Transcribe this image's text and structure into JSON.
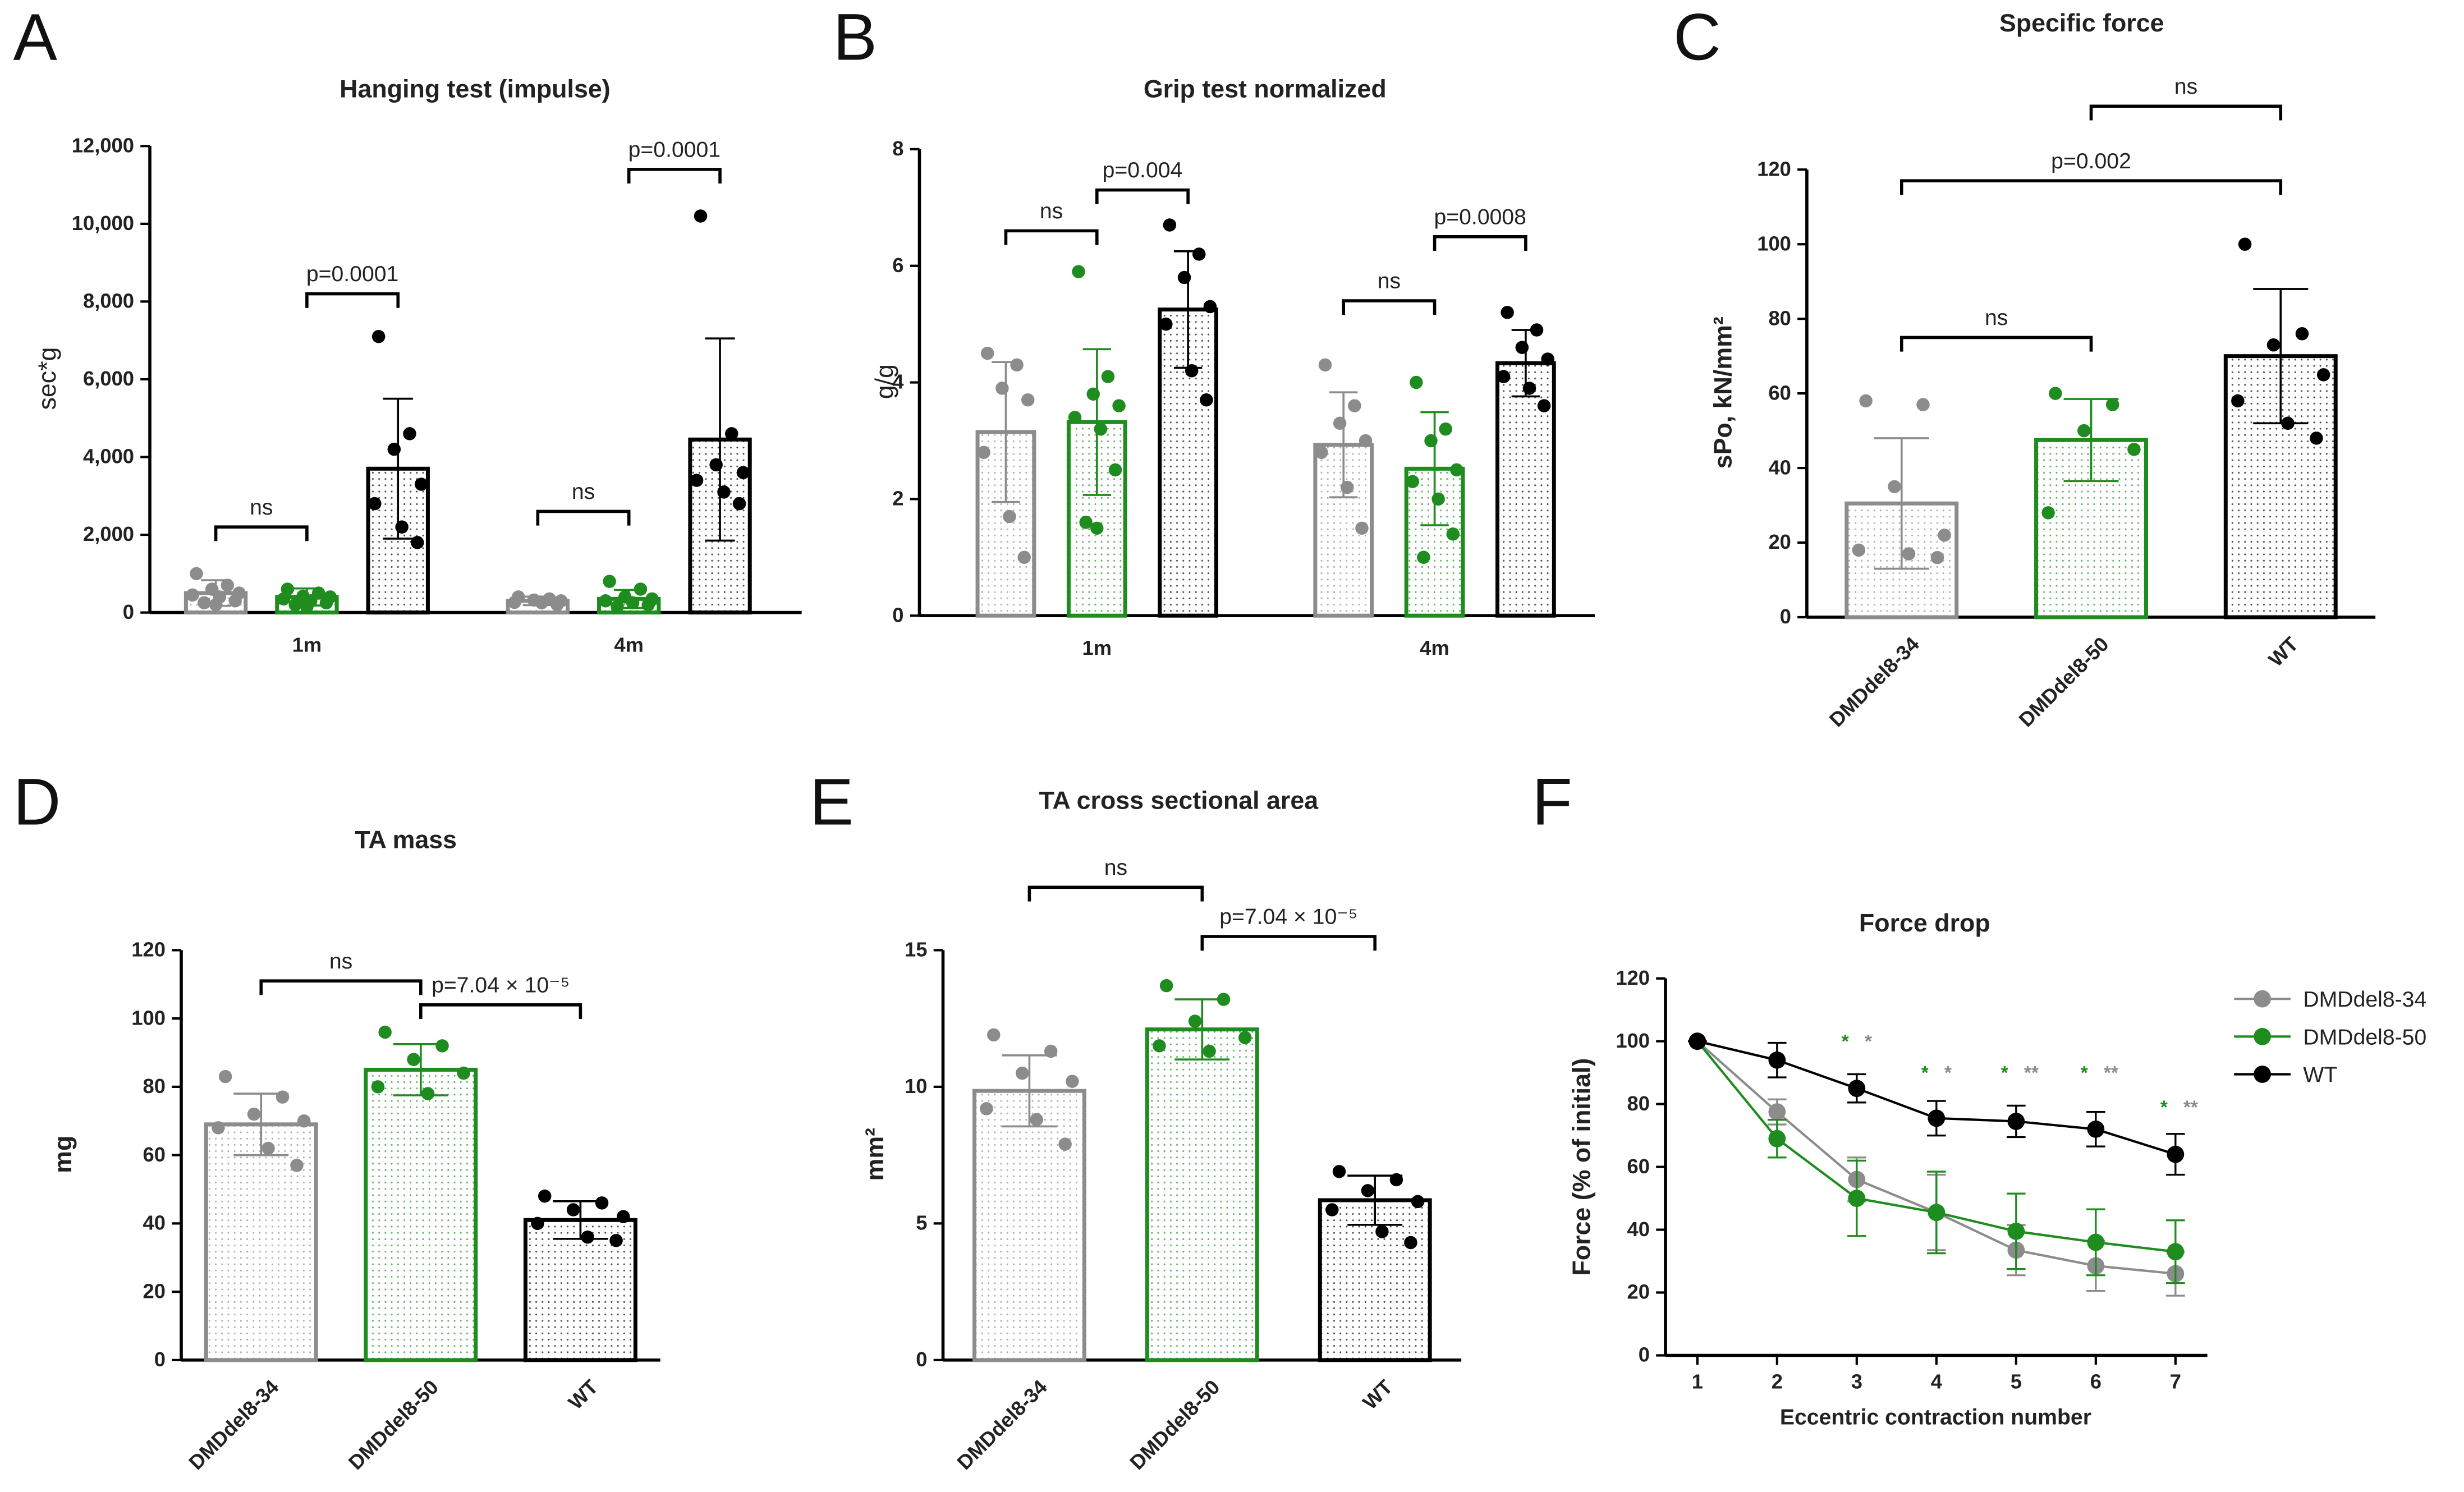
{
  "chart_data": [
    {
      "type": "bar",
      "panel": "A",
      "title": "Hanging test (impulse)",
      "ylabel": "sec*g",
      "categories": [
        "1m",
        "4m"
      ],
      "series": [
        {
          "color": "#8c8c8c",
          "values": [
            500,
            300
          ],
          "errors": [
            330,
            110
          ],
          "points": [
            [
              1000,
              700,
              600,
              500,
              450,
              400,
              300,
              250,
              200
            ],
            [
              400,
              350,
              320,
              300,
              260,
              250,
              200
            ]
          ]
        },
        {
          "color": "#1e8c1e",
          "values": [
            400,
            350
          ],
          "errors": [
            220,
            230
          ],
          "points": [
            [
              600,
              500,
              420,
              400,
              350,
              300,
              250,
              200,
              150
            ],
            [
              800,
              600,
              400,
              350,
              300,
              250,
              200,
              150
            ]
          ]
        },
        {
          "color": "#000000",
          "values": [
            3700,
            4450
          ],
          "errors": [
            1800,
            2600
          ],
          "points": [
            [
              7100,
              4600,
              4200,
              3300,
              2800,
              2200,
              1800
            ],
            [
              10200,
              4600,
              3800,
              3600,
              3400,
              3100,
              2800
            ]
          ]
        }
      ],
      "ylim": [
        0,
        12000
      ],
      "yticks": [
        0,
        {
          "value": 2000,
          "label": "2,000"
        },
        {
          "value": 4000,
          "label": "4,000"
        },
        {
          "value": 6000,
          "label": "6,000"
        },
        {
          "value": 8000,
          "label": "8,000"
        },
        {
          "value": 10000,
          "label": "10,000"
        },
        {
          "value": 12000,
          "label": "12,000"
        }
      ],
      "annotations": [
        {
          "category": 0,
          "from": 0,
          "to": 1,
          "y": 2200,
          "label": "ns"
        },
        {
          "category": 0,
          "from": 1,
          "to": 2,
          "y": 8200,
          "label": "p=0.0001"
        },
        {
          "category": 1,
          "from": 0,
          "to": 1,
          "y": 2600,
          "label": "ns"
        },
        {
          "category": 1,
          "from": 1,
          "to": 2,
          "y": 11400,
          "label": "p=0.0001"
        }
      ]
    },
    {
      "type": "bar",
      "panel": "B",
      "title": "Grip test normalized",
      "ylabel": "g/g",
      "categories": [
        "1m",
        "4m"
      ],
      "series": [
        {
          "color": "#8c8c8c",
          "values": [
            3.15,
            2.93
          ],
          "errors": [
            1.2,
            0.9
          ],
          "points": [
            [
              4.5,
              4.3,
              3.9,
              3.7,
              2.8,
              1.7,
              1.0
            ],
            [
              4.3,
              3.6,
              3.3,
              3.0,
              2.8,
              2.2,
              1.5
            ]
          ]
        },
        {
          "color": "#1e8c1e",
          "values": [
            3.32,
            2.52
          ],
          "errors": [
            1.25,
            0.97
          ],
          "points": [
            [
              5.9,
              4.1,
              3.8,
              3.6,
              3.4,
              3.2,
              2.5,
              1.6,
              1.5
            ],
            [
              4.0,
              3.2,
              3.0,
              2.5,
              2.3,
              2.0,
              1.4,
              1.0
            ]
          ]
        },
        {
          "color": "#000000",
          "values": [
            5.25,
            4.33
          ],
          "errors": [
            1.0,
            0.57
          ],
          "points": [
            [
              6.7,
              6.2,
              5.8,
              5.3,
              5.0,
              4.2,
              3.7
            ],
            [
              5.2,
              4.9,
              4.6,
              4.4,
              4.1,
              3.9,
              3.6
            ]
          ]
        }
      ],
      "ylim": [
        0,
        8
      ],
      "yticks": [
        0,
        2,
        4,
        6,
        8
      ],
      "annotations": [
        {
          "category": 0,
          "from": 0,
          "to": 1,
          "y": 6.6,
          "label": "ns"
        },
        {
          "category": 0,
          "from": 1,
          "to": 2,
          "y": 7.3,
          "label": "p=0.004"
        },
        {
          "category": 1,
          "from": 0,
          "to": 1,
          "y": 5.4,
          "label": "ns"
        },
        {
          "category": 1,
          "from": 1,
          "to": 2,
          "y": 6.5,
          "label": "p=0.0008"
        }
      ]
    },
    {
      "type": "bar",
      "panel": "C",
      "title": "Specific force",
      "ylabel": "sPo, kN/mm²",
      "categories": [
        "DMDdel8-34",
        "DMDdel8-50",
        "WT"
      ],
      "colors": [
        "#8c8c8c",
        "#1e8c1e",
        "#000000"
      ],
      "values": [
        30.5,
        47.5,
        70
      ],
      "errors": [
        17.5,
        11,
        18
      ],
      "points": [
        [
          58,
          57,
          35,
          22,
          18,
          17,
          16
        ],
        [
          60,
          57,
          50,
          45,
          28
        ],
        [
          100,
          76,
          73,
          65,
          58,
          52,
          48
        ]
      ],
      "ylim": [
        0,
        120
      ],
      "yticks": [
        0,
        20,
        40,
        60,
        80,
        100,
        120
      ],
      "annotations": [
        {
          "from": 0,
          "to": 1,
          "y": 75,
          "label": "ns"
        },
        {
          "from": 0,
          "to": 2,
          "y": 117,
          "label": "p=0.002"
        },
        {
          "from": 1,
          "to": 2,
          "y": 137,
          "label": "ns"
        }
      ]
    },
    {
      "type": "bar",
      "panel": "D",
      "title": "TA mass",
      "ylabel": "mg",
      "categories": [
        "DMDdel8-34",
        "DMDdel8-50",
        "WT"
      ],
      "colors": [
        "#8c8c8c",
        "#1e8c1e",
        "#000000"
      ],
      "values": [
        69,
        85,
        41
      ],
      "errors": [
        9,
        7.5,
        5.5
      ],
      "points": [
        [
          83,
          77,
          72,
          70,
          68,
          62,
          57
        ],
        [
          96,
          92,
          88,
          84,
          80,
          78
        ],
        [
          48,
          46,
          44,
          42,
          40,
          36,
          35
        ]
      ],
      "ylim": [
        0,
        120
      ],
      "yticks": [
        0,
        20,
        40,
        60,
        80,
        100,
        120
      ],
      "annotations": [
        {
          "from": 0,
          "to": 1,
          "y": 111,
          "label": "ns"
        },
        {
          "from": 1,
          "to": 2,
          "y": 104,
          "label": "p=7.04 × 10⁻⁵"
        }
      ]
    },
    {
      "type": "bar",
      "panel": "E",
      "title": "TA cross sectional area",
      "ylabel": "mm²",
      "categories": [
        "DMDdel8-34",
        "DMDdel8-50",
        "WT"
      ],
      "colors": [
        "#8c8c8c",
        "#1e8c1e",
        "#000000"
      ],
      "values": [
        9.85,
        12.1,
        5.85
      ],
      "errors": [
        1.3,
        1.1,
        0.9
      ],
      "points": [
        [
          11.9,
          11.3,
          10.5,
          10.2,
          9.2,
          8.8,
          7.9
        ],
        [
          13.7,
          13.2,
          12.4,
          11.8,
          11.5,
          11.3
        ],
        [
          6.9,
          6.6,
          6.2,
          5.8,
          5.5,
          4.7,
          4.3
        ]
      ],
      "ylim": [
        0,
        15
      ],
      "yticks": [
        0,
        5,
        10,
        15
      ],
      "annotations": [
        {
          "from": 0,
          "to": 1,
          "y": 17.3,
          "label": "ns"
        },
        {
          "from": 1,
          "to": 2,
          "y": 15.5,
          "label": "p=7.04 × 10⁻⁵"
        }
      ]
    },
    {
      "type": "line",
      "panel": "F",
      "title": "Force drop",
      "xlabel": "Eccentric contraction number",
      "ylabel": "Force (% of initial)",
      "x": [
        1,
        2,
        3,
        4,
        5,
        6,
        7
      ],
      "series": [
        {
          "name": "DMDdel8-34",
          "color": "#8c8c8c",
          "values": [
            100,
            77.5,
            56,
            45.5,
            33.5,
            28.5,
            26
          ],
          "errors": [
            0,
            4,
            7,
            12,
            8,
            8,
            7
          ]
        },
        {
          "name": "DMDdel8-50",
          "color": "#1e8c1e",
          "values": [
            100,
            69,
            50,
            45.5,
            39.5,
            36,
            33
          ],
          "errors": [
            0,
            6,
            12,
            13,
            12,
            10.5,
            10
          ]
        },
        {
          "name": "WT",
          "color": "#000000",
          "values": [
            100,
            94,
            85,
            75.5,
            74.5,
            72,
            64
          ],
          "errors": [
            0,
            5.5,
            4.5,
            5.5,
            5,
            5.5,
            6.5
          ]
        }
      ],
      "xlim": [
        0.6,
        7.4
      ],
      "xticks": [
        1,
        2,
        3,
        4,
        5,
        6,
        7
      ],
      "ylim": [
        0,
        120
      ],
      "yticks": [
        0,
        20,
        40,
        60,
        80,
        100,
        120
      ],
      "annotations": [
        {
          "x": 3,
          "y": 98,
          "texts": [
            "*",
            "*"
          ],
          "colors": [
            "#1e8c1e",
            "#8c8c8c"
          ]
        },
        {
          "x": 4,
          "y": 88,
          "texts": [
            "*",
            "*"
          ],
          "colors": [
            "#1e8c1e",
            "#8c8c8c"
          ]
        },
        {
          "x": 5,
          "y": 88,
          "texts": [
            "*",
            "**"
          ],
          "colors": [
            "#1e8c1e",
            "#8c8c8c"
          ]
        },
        {
          "x": 6,
          "y": 88,
          "texts": [
            "*",
            "**"
          ],
          "colors": [
            "#1e8c1e",
            "#8c8c8c"
          ]
        },
        {
          "x": 7,
          "y": 77,
          "texts": [
            "*",
            "**"
          ],
          "colors": [
            "#1e8c1e",
            "#8c8c8c"
          ]
        }
      ],
      "legend": "right"
    }
  ]
}
